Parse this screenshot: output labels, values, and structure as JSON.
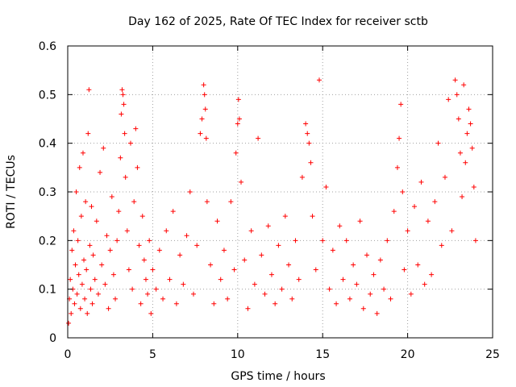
{
  "chart_data": {
    "type": "scatter",
    "title": "Day 162 of 2025, Rate Of TEC Index for receiver sctb",
    "xlabel": "GPS time / hours",
    "ylabel": "ROTI / TECUs",
    "xlim": [
      0,
      25
    ],
    "ylim": [
      0,
      0.6
    ],
    "xticks": [
      "0",
      "5",
      "10",
      "15",
      "20",
      "25"
    ],
    "yticks": [
      "0",
      "0.1",
      "0.2",
      "0.3",
      "0.4",
      "0.5",
      "0.6"
    ],
    "grid": true,
    "marker": "plus",
    "color": "#ff0000",
    "series": [
      {
        "points": [
          [
            0.05,
            0.03
          ],
          [
            0.1,
            0.08
          ],
          [
            0.15,
            0.12
          ],
          [
            0.2,
            0.05
          ],
          [
            0.25,
            0.18
          ],
          [
            0.3,
            0.1
          ],
          [
            0.35,
            0.22
          ],
          [
            0.4,
            0.07
          ],
          [
            0.45,
            0.15
          ],
          [
            0.5,
            0.3
          ],
          [
            0.55,
            0.09
          ],
          [
            0.6,
            0.2
          ],
          [
            0.65,
            0.13
          ],
          [
            0.7,
            0.35
          ],
          [
            0.75,
            0.06
          ],
          [
            0.8,
            0.25
          ],
          [
            0.85,
            0.11
          ],
          [
            0.9,
            0.38
          ],
          [
            0.95,
            0.16
          ],
          [
            1.0,
            0.08
          ],
          [
            1.05,
            0.28
          ],
          [
            1.1,
            0.14
          ],
          [
            1.15,
            0.05
          ],
          [
            1.2,
            0.42
          ],
          [
            1.25,
            0.51
          ],
          [
            1.3,
            0.19
          ],
          [
            1.35,
            0.1
          ],
          [
            1.4,
            0.27
          ],
          [
            1.45,
            0.07
          ],
          [
            1.5,
            0.17
          ],
          [
            1.6,
            0.12
          ],
          [
            1.7,
            0.24
          ],
          [
            1.8,
            0.09
          ],
          [
            1.9,
            0.34
          ],
          [
            2.0,
            0.15
          ],
          [
            2.1,
            0.39
          ],
          [
            2.2,
            0.11
          ],
          [
            2.3,
            0.21
          ],
          [
            2.4,
            0.06
          ],
          [
            2.5,
            0.18
          ],
          [
            2.6,
            0.29
          ],
          [
            2.7,
            0.13
          ],
          [
            2.8,
            0.08
          ],
          [
            2.9,
            0.2
          ],
          [
            3.0,
            0.26
          ],
          [
            3.1,
            0.37
          ],
          [
            3.15,
            0.46
          ],
          [
            3.2,
            0.51
          ],
          [
            3.25,
            0.5
          ],
          [
            3.3,
            0.48
          ],
          [
            3.35,
            0.42
          ],
          [
            3.4,
            0.33
          ],
          [
            3.5,
            0.22
          ],
          [
            3.6,
            0.14
          ],
          [
            3.7,
            0.4
          ],
          [
            3.8,
            0.1
          ],
          [
            3.9,
            0.28
          ],
          [
            4.0,
            0.43
          ],
          [
            4.1,
            0.35
          ],
          [
            4.2,
            0.19
          ],
          [
            4.3,
            0.07
          ],
          [
            4.4,
            0.25
          ],
          [
            4.5,
            0.16
          ],
          [
            4.6,
            0.12
          ],
          [
            4.7,
            0.09
          ],
          [
            4.8,
            0.2
          ],
          [
            4.9,
            0.05
          ],
          [
            5.0,
            0.14
          ],
          [
            5.2,
            0.1
          ],
          [
            5.4,
            0.18
          ],
          [
            5.6,
            0.08
          ],
          [
            5.8,
            0.22
          ],
          [
            6.0,
            0.12
          ],
          [
            6.2,
            0.26
          ],
          [
            6.4,
            0.07
          ],
          [
            6.6,
            0.17
          ],
          [
            6.8,
            0.11
          ],
          [
            7.0,
            0.21
          ],
          [
            7.2,
            0.3
          ],
          [
            7.4,
            0.09
          ],
          [
            7.6,
            0.19
          ],
          [
            7.8,
            0.42
          ],
          [
            7.9,
            0.45
          ],
          [
            8.0,
            0.52
          ],
          [
            8.05,
            0.5
          ],
          [
            8.1,
            0.47
          ],
          [
            8.15,
            0.41
          ],
          [
            8.2,
            0.28
          ],
          [
            8.4,
            0.15
          ],
          [
            8.6,
            0.07
          ],
          [
            8.8,
            0.24
          ],
          [
            9.0,
            0.12
          ],
          [
            9.2,
            0.18
          ],
          [
            9.4,
            0.08
          ],
          [
            9.6,
            0.28
          ],
          [
            9.8,
            0.14
          ],
          [
            9.9,
            0.38
          ],
          [
            10.0,
            0.44
          ],
          [
            10.05,
            0.49
          ],
          [
            10.1,
            0.45
          ],
          [
            10.2,
            0.32
          ],
          [
            10.4,
            0.16
          ],
          [
            10.6,
            0.06
          ],
          [
            10.8,
            0.22
          ],
          [
            11.0,
            0.11
          ],
          [
            11.2,
            0.41
          ],
          [
            11.4,
            0.17
          ],
          [
            11.6,
            0.09
          ],
          [
            11.8,
            0.23
          ],
          [
            12.0,
            0.13
          ],
          [
            12.2,
            0.07
          ],
          [
            12.4,
            0.19
          ],
          [
            12.6,
            0.1
          ],
          [
            12.8,
            0.25
          ],
          [
            13.0,
            0.15
          ],
          [
            13.2,
            0.08
          ],
          [
            13.4,
            0.2
          ],
          [
            13.6,
            0.12
          ],
          [
            13.8,
            0.33
          ],
          [
            14.0,
            0.44
          ],
          [
            14.1,
            0.42
          ],
          [
            14.2,
            0.4
          ],
          [
            14.3,
            0.36
          ],
          [
            14.4,
            0.25
          ],
          [
            14.6,
            0.14
          ],
          [
            14.8,
            0.53
          ],
          [
            15.0,
            0.2
          ],
          [
            15.2,
            0.31
          ],
          [
            15.4,
            0.1
          ],
          [
            15.6,
            0.18
          ],
          [
            15.8,
            0.07
          ],
          [
            16.0,
            0.23
          ],
          [
            16.2,
            0.12
          ],
          [
            16.4,
            0.2
          ],
          [
            16.6,
            0.08
          ],
          [
            16.8,
            0.15
          ],
          [
            17.0,
            0.11
          ],
          [
            17.2,
            0.24
          ],
          [
            17.4,
            0.06
          ],
          [
            17.6,
            0.17
          ],
          [
            17.8,
            0.09
          ],
          [
            18.0,
            0.13
          ],
          [
            18.2,
            0.05
          ],
          [
            18.4,
            0.16
          ],
          [
            18.6,
            0.1
          ],
          [
            18.8,
            0.2
          ],
          [
            19.0,
            0.08
          ],
          [
            19.2,
            0.26
          ],
          [
            19.4,
            0.35
          ],
          [
            19.5,
            0.41
          ],
          [
            19.6,
            0.48
          ],
          [
            19.7,
            0.3
          ],
          [
            19.8,
            0.14
          ],
          [
            20.0,
            0.22
          ],
          [
            20.2,
            0.09
          ],
          [
            20.4,
            0.27
          ],
          [
            20.6,
            0.15
          ],
          [
            20.8,
            0.32
          ],
          [
            21.0,
            0.11
          ],
          [
            21.2,
            0.24
          ],
          [
            21.4,
            0.13
          ],
          [
            21.6,
            0.28
          ],
          [
            21.8,
            0.4
          ],
          [
            22.0,
            0.19
          ],
          [
            22.2,
            0.33
          ],
          [
            22.4,
            0.49
          ],
          [
            22.6,
            0.22
          ],
          [
            22.8,
            0.53
          ],
          [
            22.9,
            0.5
          ],
          [
            23.0,
            0.45
          ],
          [
            23.1,
            0.38
          ],
          [
            23.2,
            0.29
          ],
          [
            23.3,
            0.52
          ],
          [
            23.4,
            0.36
          ],
          [
            23.5,
            0.42
          ],
          [
            23.6,
            0.47
          ],
          [
            23.7,
            0.44
          ],
          [
            23.8,
            0.39
          ],
          [
            23.9,
            0.31
          ],
          [
            24.0,
            0.2
          ]
        ]
      }
    ]
  }
}
